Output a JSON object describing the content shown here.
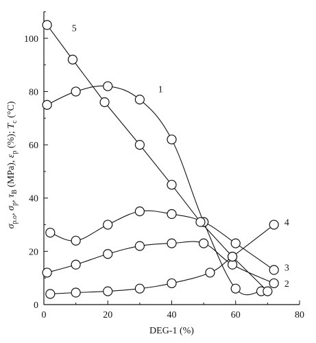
{
  "chart_data": {
    "type": "line",
    "xlabel": "DEG-1 (%)",
    "ylabel_parts": [
      {
        "t": "σ",
        "it": true
      },
      {
        "t": "p.o",
        "sub": true
      },
      {
        "t": ", "
      },
      {
        "t": "σ",
        "it": true
      },
      {
        "t": "p",
        "sub": true
      },
      {
        "t": ", "
      },
      {
        "t": "τ",
        "it": true
      },
      {
        "t": "B",
        "sub": true
      },
      {
        "t": " (MPa), "
      },
      {
        "t": "ε",
        "it": true
      },
      {
        "t": "p",
        "sub": true
      },
      {
        "t": " (%); "
      },
      {
        "t": "T",
        "it": true
      },
      {
        "t": "c",
        "sub": true
      },
      {
        "t": " (°C)"
      }
    ],
    "xlim": [
      0,
      80
    ],
    "ylim": [
      0,
      110
    ],
    "xticks": [
      0,
      20,
      40,
      60,
      80
    ],
    "yticks": [
      0,
      20,
      40,
      60,
      80,
      100
    ],
    "grid": false,
    "series": [
      {
        "name": "1",
        "x": [
          1,
          10,
          20,
          30,
          40,
          50,
          60,
          68
        ],
        "y": [
          75,
          80,
          82,
          77,
          62,
          31,
          6,
          5
        ],
        "label_at": [
          36.5,
          81
        ]
      },
      {
        "name": "2",
        "x": [
          1,
          10,
          20,
          30,
          40,
          50,
          59,
          72
        ],
        "y": [
          12,
          15,
          19,
          22,
          23,
          23,
          15,
          8
        ],
        "label_at": [
          76,
          8
        ]
      },
      {
        "name": "3",
        "x": [
          2,
          10,
          20,
          30,
          40,
          50,
          60,
          72
        ],
        "y": [
          27,
          24,
          30,
          35,
          34,
          31,
          23,
          13
        ],
        "label_at": [
          76,
          14
        ]
      },
      {
        "name": "4",
        "x": [
          2,
          10,
          20,
          30,
          40,
          52,
          59,
          72
        ],
        "y": [
          4,
          4.5,
          5,
          6,
          8,
          12,
          18,
          30
        ],
        "label_at": [
          76,
          31
        ]
      },
      {
        "name": "5",
        "x": [
          1,
          9,
          19,
          30,
          40,
          49,
          59,
          70
        ],
        "y": [
          105,
          92,
          76,
          60,
          45,
          31,
          18,
          5
        ],
        "label_at": [
          9.5,
          104
        ]
      }
    ]
  }
}
